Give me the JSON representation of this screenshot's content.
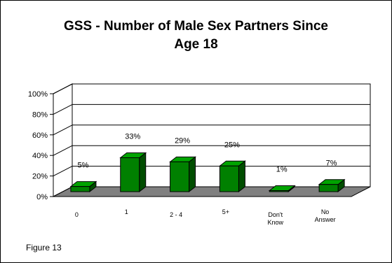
{
  "chart_data": {
    "type": "bar",
    "title_lines": [
      "GSS - Number of Male Sex Partners Since",
      "Age 18"
    ],
    "categories": [
      [
        "0"
      ],
      [
        "1"
      ],
      [
        "2 - 4"
      ],
      [
        "5+"
      ],
      [
        "Don't",
        "Know"
      ],
      [
        "No",
        "Answer"
      ]
    ],
    "values": [
      5,
      33,
      29,
      25,
      1,
      7
    ],
    "data_labels": [
      "5%",
      "33%",
      "29%",
      "25%",
      "1%",
      "7%"
    ],
    "yticks": [
      "0%",
      "20%",
      "40%",
      "60%",
      "80%",
      "100%"
    ],
    "ylim": [
      0,
      100
    ],
    "grid": true,
    "three_d": true,
    "colors": {
      "bar_front": "#008000",
      "bar_side": "#004d00",
      "bar_top": "#00a300",
      "floor": "#808080"
    }
  },
  "figure_label": "Figure 13"
}
